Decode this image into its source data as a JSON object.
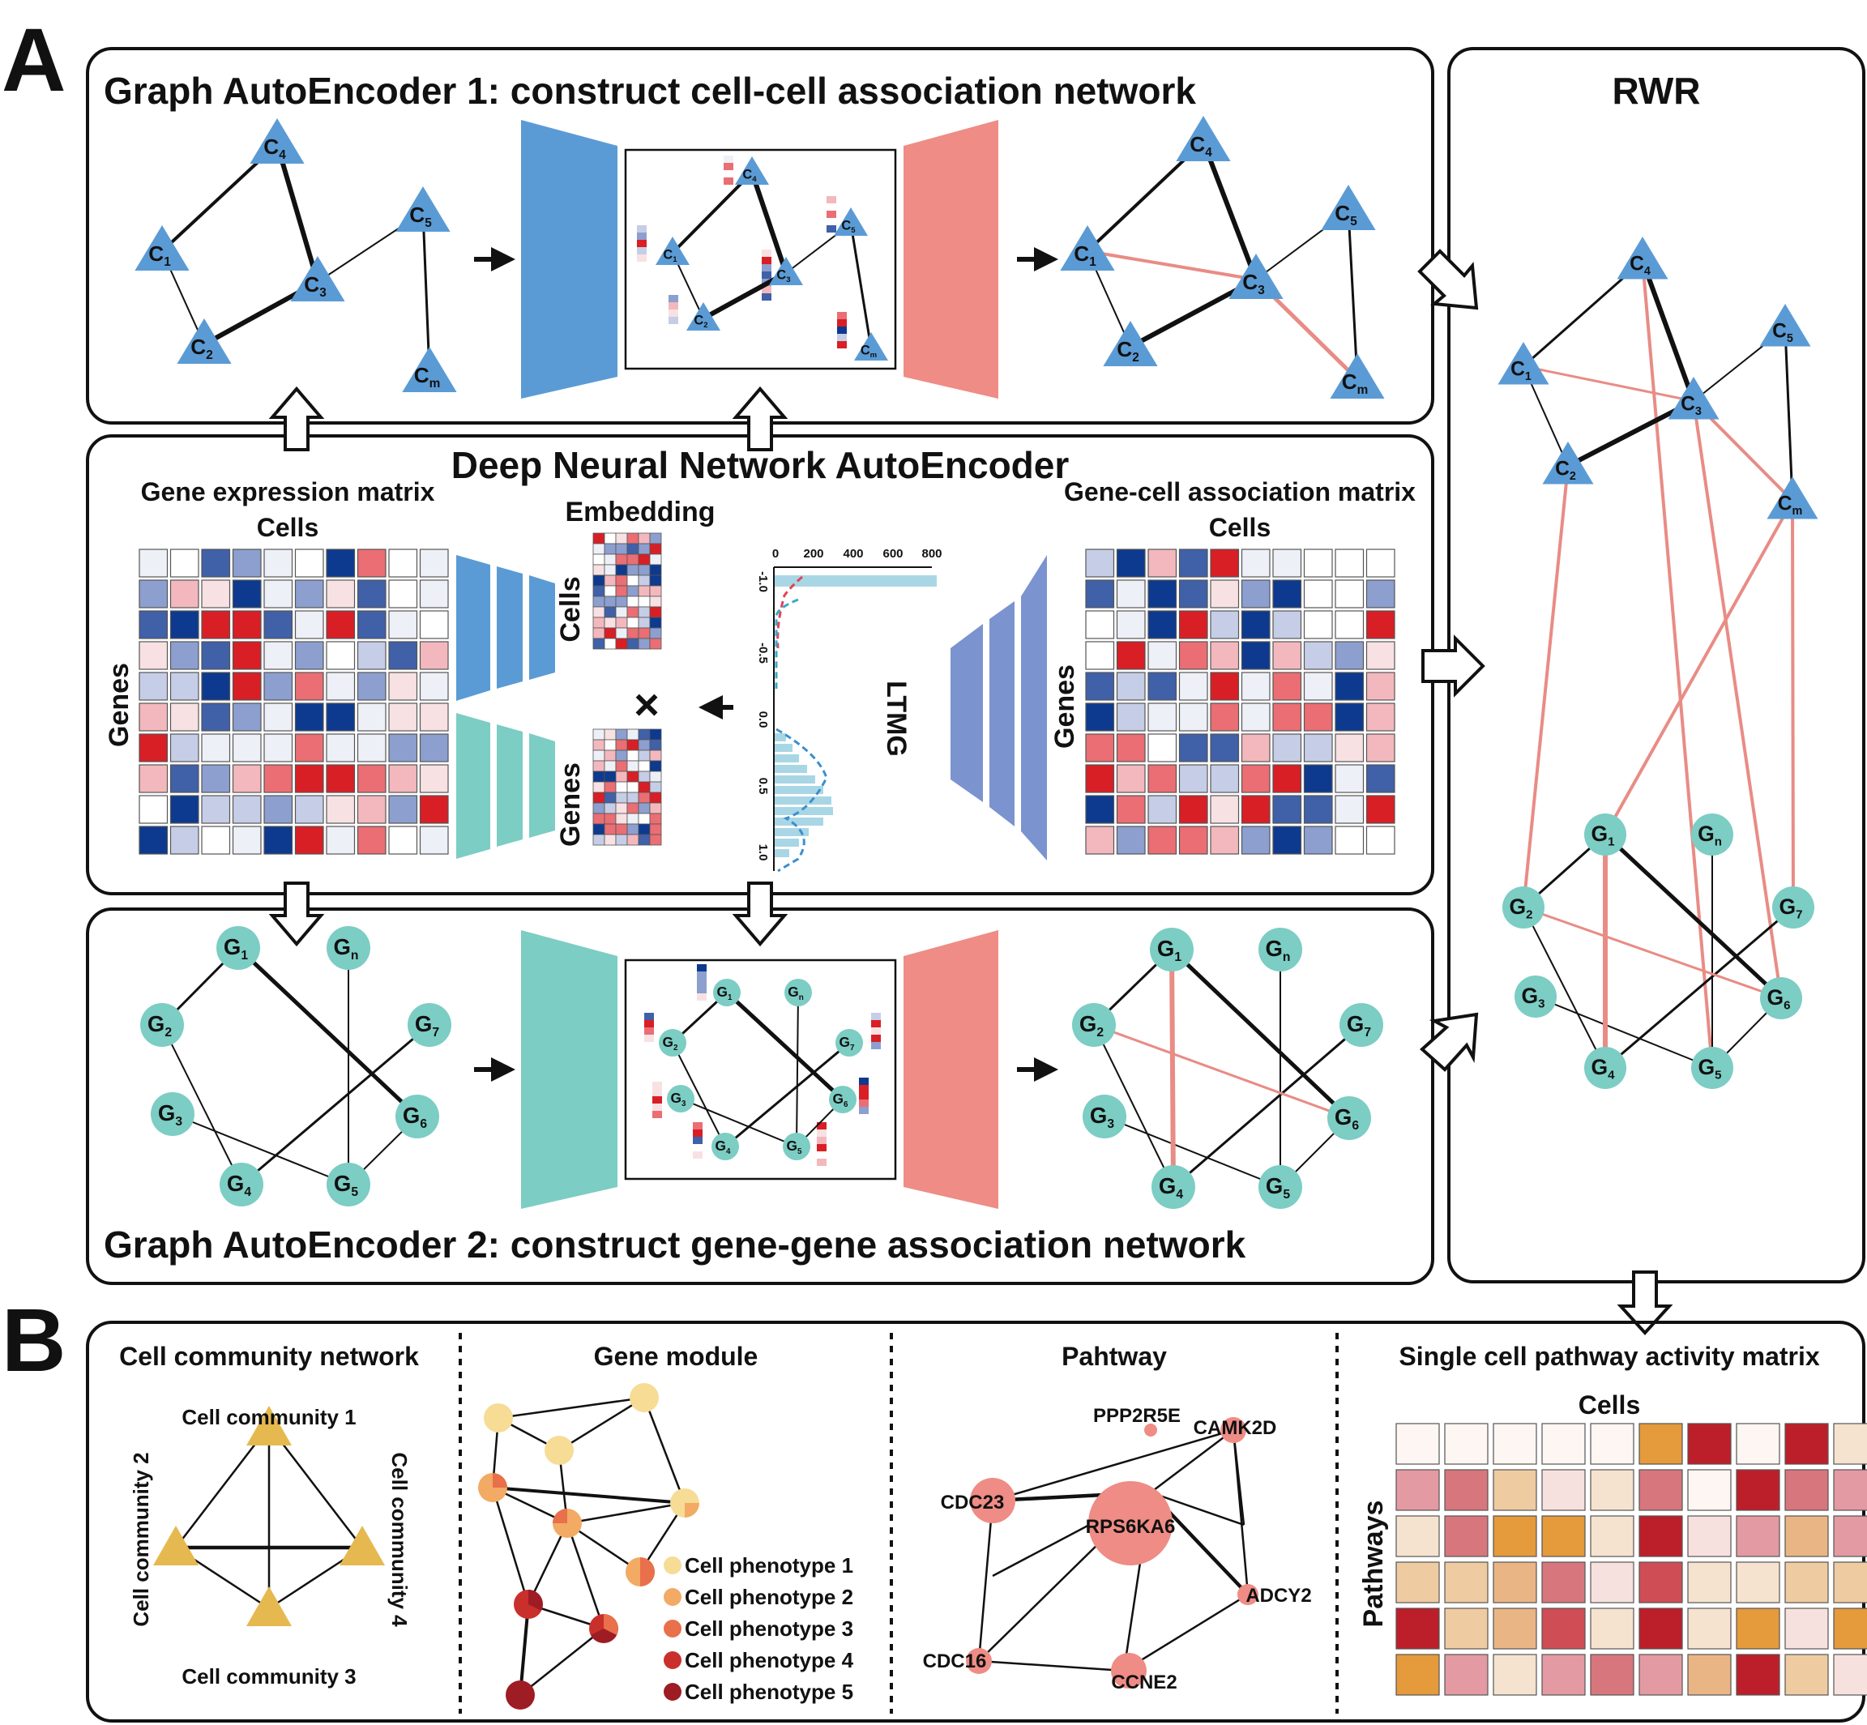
{
  "panel_a": {
    "letter": "A",
    "gae1_title": "Graph AutoEncoder 1: construct cell-cell association network",
    "dnn_title": "Deep Neural Network AutoEncoder",
    "gae2_title": "Graph AutoEncoder 2: construct gene-gene association network",
    "rwr_title": "RWR",
    "gene_expr_title": "Gene expression matrix",
    "gene_expr_cells": "Cells",
    "genes_label": "Genes",
    "embedding_title": "Embedding",
    "embed_cells": "Cells",
    "embed_genes": "Genes",
    "ltmg_label": "LTMG",
    "ltmg_x_ticks": [
      "0",
      "200",
      "400",
      "600",
      "800"
    ],
    "ltmg_y_ticks": [
      "-1.0",
      "-0.5",
      "0.0",
      "0.5",
      "1.0"
    ],
    "gc_title": "Gene-cell association matrix",
    "gc_cells": "Cells",
    "gc_genes": "Genes",
    "multiply": "×"
  },
  "cells": [
    {
      "base": "C",
      "sub": "1"
    },
    {
      "base": "C",
      "sub": "2"
    },
    {
      "base": "C",
      "sub": "3"
    },
    {
      "base": "C",
      "sub": "4"
    },
    {
      "base": "C",
      "sub": "5"
    },
    {
      "base": "C",
      "sub": "m"
    }
  ],
  "genes": [
    {
      "base": "G",
      "sub": "1"
    },
    {
      "base": "G",
      "sub": "2"
    },
    {
      "base": "G",
      "sub": "3"
    },
    {
      "base": "G",
      "sub": "4"
    },
    {
      "base": "G",
      "sub": "5"
    },
    {
      "base": "G",
      "sub": "6"
    },
    {
      "base": "G",
      "sub": "7"
    },
    {
      "base": "G",
      "sub": "n"
    }
  ],
  "panel_b": {
    "letter": "B",
    "ccn_title": "Cell community network",
    "communities": [
      "Cell community 1",
      "Cell community 2",
      "Cell community 3",
      "Cell community 4"
    ],
    "gm_title": "Gene module",
    "phenotypes": [
      "Cell phenotype 1",
      "Cell phenotype 2",
      "Cell phenotype 3",
      "Cell phenotype 4",
      "Cell phenotype 5"
    ],
    "phenotype_colors": [
      "#f6dc95",
      "#f2aa64",
      "#e8704a",
      "#c9302c",
      "#9e1c24"
    ],
    "pw_title": "Pahtway",
    "pathway_genes": [
      "PPP2R5E",
      "CAMK2D",
      "CDC23",
      "RPS6KA6",
      "ADCY2",
      "CDC16",
      "CCNE2"
    ],
    "scpam_title": "Single cell pathway activity matrix",
    "scpam_cells": "Cells",
    "scpam_pathways": "Pathways"
  },
  "colors": {
    "cell_node": "#5b9bd5",
    "gene_node": "#7ccdc4",
    "encoder_blue": "#5b9bd5",
    "encoder_teal": "#7ccdc4",
    "encoder_periwinkle": "#7b93cf",
    "decoder_salmon": "#ee8c85",
    "new_edge": "#e88c85",
    "community": "#e5b94f"
  }
}
